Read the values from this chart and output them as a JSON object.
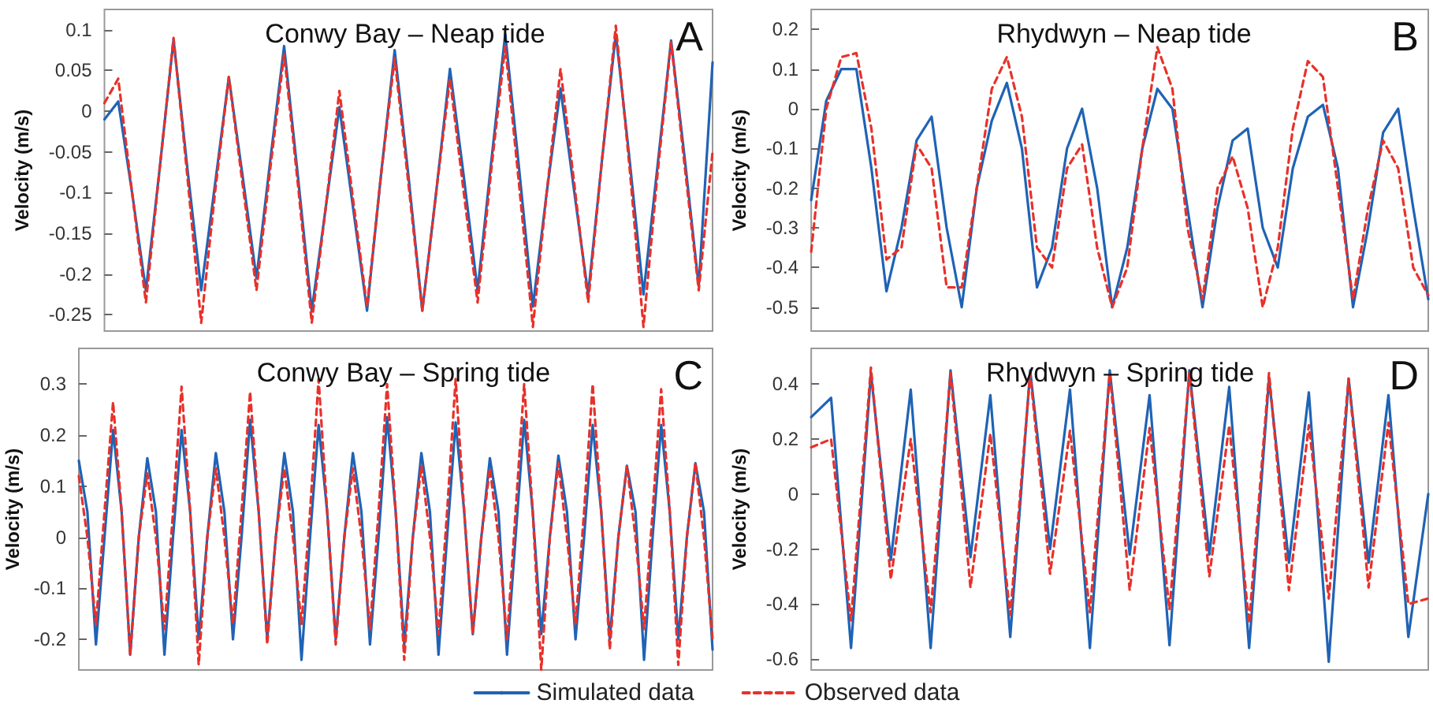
{
  "chart_data": [
    {
      "type": "line",
      "title": "Conwy Bay – Neap tide",
      "ylabel": "Velocity (m/s)",
      "annotations": [
        "A"
      ],
      "tick_labels": "y",
      "grid": false,
      "marker": "none",
      "categories": [
        null,
        null,
        null,
        null,
        null,
        null,
        null,
        null,
        null,
        null,
        null,
        null,
        null,
        null,
        null,
        null,
        null,
        null,
        null,
        null,
        null,
        null,
        null,
        null,
        null,
        null,
        null,
        null,
        null,
        null,
        null,
        null,
        null,
        null,
        null,
        null,
        null,
        null,
        null,
        null,
        null,
        null,
        null,
        null,
        null
      ],
      "ylim": [
        -0.27,
        0.125
      ],
      "yticks": [
        -0.25,
        -0.2,
        -0.15,
        -0.1,
        -0.05,
        0,
        0.05,
        0.1
      ],
      "series": [
        {
          "color": "#1f63b5",
          "line_style": "solid",
          "values": [
            -0.01,
            0.012,
            -0.1,
            -0.22,
            -0.07,
            0.088,
            -0.07,
            -0.22,
            -0.09,
            0.042,
            -0.08,
            -0.205,
            -0.06,
            0.08,
            -0.08,
            -0.245,
            -0.12,
            0.005,
            -0.12,
            -0.245,
            -0.08,
            0.075,
            -0.08,
            -0.245,
            -0.1,
            0.052,
            -0.08,
            -0.22,
            -0.06,
            0.095,
            -0.07,
            -0.24,
            -0.1,
            0.028,
            -0.1,
            -0.225,
            -0.06,
            0.095,
            -0.06,
            -0.225,
            -0.07,
            0.087,
            -0.06,
            -0.215,
            0.06
          ]
        },
        {
          "color": "#e8312a",
          "line_style": "dashed",
          "values": [
            0.01,
            0.04,
            -0.1,
            -0.235,
            -0.07,
            0.09,
            -0.08,
            -0.26,
            -0.1,
            0.042,
            -0.09,
            -0.22,
            -0.07,
            0.07,
            -0.09,
            -0.26,
            -0.12,
            0.025,
            -0.11,
            -0.24,
            -0.08,
            0.065,
            -0.09,
            -0.245,
            -0.1,
            0.04,
            -0.1,
            -0.235,
            -0.07,
            0.08,
            -0.09,
            -0.265,
            -0.1,
            0.052,
            -0.09,
            -0.235,
            -0.06,
            0.105,
            -0.07,
            -0.265,
            -0.08,
            0.085,
            -0.07,
            -0.22,
            -0.05
          ]
        }
      ]
    },
    {
      "type": "line",
      "title": "Rhydwyn – Neap tide",
      "ylabel": "Velocity (m/s)",
      "annotations": [
        "B"
      ],
      "tick_labels": "y",
      "grid": false,
      "marker": "none",
      "categories": [
        null,
        null,
        null,
        null,
        null,
        null,
        null,
        null,
        null,
        null,
        null,
        null,
        null,
        null,
        null,
        null,
        null,
        null,
        null,
        null,
        null,
        null,
        null,
        null,
        null,
        null,
        null,
        null,
        null,
        null,
        null,
        null,
        null,
        null,
        null,
        null,
        null,
        null,
        null,
        null,
        null,
        null
      ],
      "ylim": [
        -0.56,
        0.25
      ],
      "yticks": [
        -0.5,
        -0.4,
        -0.3,
        -0.2,
        -0.1,
        0,
        0.1,
        0.2
      ],
      "series": [
        {
          "color": "#1f63b5",
          "line_style": "solid",
          "values": [
            -0.23,
            0.02,
            0.1,
            0.1,
            -0.15,
            -0.46,
            -0.3,
            -0.08,
            -0.02,
            -0.3,
            -0.5,
            -0.2,
            -0.03,
            0.065,
            -0.1,
            -0.45,
            -0.35,
            -0.1,
            0.0,
            -0.2,
            -0.5,
            -0.35,
            -0.1,
            0.05,
            0.0,
            -0.25,
            -0.5,
            -0.25,
            -0.08,
            -0.05,
            -0.3,
            -0.4,
            -0.15,
            -0.02,
            0.01,
            -0.15,
            -0.5,
            -0.3,
            -0.06,
            0.0,
            -0.25,
            -0.48
          ]
        },
        {
          "color": "#e8312a",
          "line_style": "dashed",
          "values": [
            -0.36,
            0.0,
            0.13,
            0.14,
            -0.05,
            -0.38,
            -0.35,
            -0.09,
            -0.15,
            -0.45,
            -0.45,
            -0.2,
            0.05,
            0.13,
            -0.02,
            -0.35,
            -0.4,
            -0.15,
            -0.09,
            -0.35,
            -0.5,
            -0.4,
            -0.1,
            0.155,
            0.05,
            -0.3,
            -0.48,
            -0.2,
            -0.12,
            -0.25,
            -0.5,
            -0.35,
            -0.05,
            0.12,
            0.08,
            -0.2,
            -0.48,
            -0.25,
            -0.08,
            -0.15,
            -0.4,
            -0.47
          ]
        }
      ]
    },
    {
      "type": "line",
      "title": "Conwy Bay – Spring tide",
      "ylabel": "Velocity (m/s)",
      "annotations": [
        "C"
      ],
      "tick_labels": "y",
      "grid": false,
      "marker": "none",
      "legend": "bottom",
      "categories": [
        null,
        null,
        null,
        null,
        null,
        null,
        null,
        null,
        null,
        null,
        null,
        null,
        null,
        null,
        null,
        null,
        null,
        null,
        null,
        null,
        null,
        null,
        null,
        null,
        null,
        null,
        null,
        null,
        null,
        null,
        null,
        null,
        null,
        null,
        null,
        null,
        null,
        null,
        null,
        null,
        null,
        null,
        null,
        null,
        null,
        null,
        null,
        null,
        null,
        null,
        null,
        null,
        null,
        null,
        null,
        null,
        null,
        null,
        null,
        null,
        null,
        null,
        null,
        null,
        null,
        null,
        null,
        null,
        null,
        null,
        null,
        null,
        null,
        null,
        null
      ],
      "ylim": [
        -0.26,
        0.37
      ],
      "yticks": [
        -0.2,
        -0.1,
        0,
        0.1,
        0.2,
        0.3
      ],
      "series": [
        {
          "name": "Simulated data",
          "color": "#1f63b5",
          "line_style": "solid",
          "values": [
            0.15,
            0.05,
            -0.21,
            0.0,
            0.21,
            0.05,
            -0.23,
            0.0,
            0.155,
            0.05,
            -0.23,
            0.0,
            0.21,
            0.05,
            -0.2,
            0.0,
            0.165,
            0.05,
            -0.2,
            0.0,
            0.23,
            0.05,
            -0.2,
            0.0,
            0.165,
            0.05,
            -0.24,
            0.0,
            0.22,
            0.05,
            -0.2,
            0.0,
            0.165,
            0.05,
            -0.21,
            0.0,
            0.235,
            0.05,
            -0.21,
            0.0,
            0.165,
            0.05,
            -0.23,
            0.0,
            0.225,
            0.05,
            -0.19,
            0.0,
            0.155,
            0.05,
            -0.23,
            0.0,
            0.23,
            0.05,
            -0.19,
            0.0,
            0.16,
            0.05,
            -0.2,
            0.0,
            0.22,
            0.05,
            -0.2,
            0.0,
            0.14,
            0.05,
            -0.24,
            0.0,
            0.22,
            0.05,
            -0.2,
            0.0,
            0.145,
            0.05,
            -0.22
          ]
        },
        {
          "name": "Observed data",
          "color": "#e8312a",
          "line_style": "dashed",
          "values": [
            0.12,
            0.0,
            -0.17,
            0.05,
            0.265,
            0.05,
            -0.23,
            0.0,
            0.125,
            0.0,
            -0.18,
            0.05,
            0.295,
            0.05,
            -0.25,
            0.0,
            0.135,
            0.0,
            -0.17,
            0.05,
            0.285,
            0.05,
            -0.21,
            0.0,
            0.135,
            0.0,
            -0.17,
            0.05,
            0.31,
            0.05,
            -0.21,
            0.0,
            0.135,
            0.0,
            -0.18,
            0.05,
            0.3,
            0.05,
            -0.24,
            0.0,
            0.14,
            0.0,
            -0.19,
            0.05,
            0.31,
            0.05,
            -0.19,
            0.0,
            0.135,
            0.0,
            -0.2,
            0.05,
            0.3,
            0.05,
            -0.26,
            0.0,
            0.145,
            0.0,
            -0.17,
            0.05,
            0.3,
            0.05,
            -0.22,
            0.0,
            0.14,
            0.0,
            -0.18,
            0.05,
            0.29,
            0.05,
            -0.25,
            0.0,
            0.145,
            0.0,
            -0.2
          ]
        }
      ]
    },
    {
      "type": "line",
      "title": "Rhydwyn – Spring tide",
      "ylabel": "Velocity (m/s)",
      "annotations": [
        "D"
      ],
      "tick_labels": "y",
      "grid": false,
      "marker": "none",
      "categories": [
        null,
        null,
        null,
        null,
        null,
        null,
        null,
        null,
        null,
        null,
        null,
        null,
        null,
        null,
        null,
        null,
        null,
        null,
        null,
        null,
        null,
        null,
        null,
        null,
        null,
        null,
        null,
        null,
        null,
        null,
        null,
        null
      ],
      "ylim": [
        -0.64,
        0.53
      ],
      "yticks": [
        -0.6,
        -0.4,
        -0.2,
        0,
        0.2,
        0.4
      ],
      "series": [
        {
          "color": "#1f63b5",
          "line_style": "solid",
          "values": [
            0.28,
            0.35,
            -0.56,
            0.44,
            -0.24,
            0.38,
            -0.56,
            0.45,
            -0.23,
            0.36,
            -0.52,
            0.45,
            -0.2,
            0.38,
            -0.56,
            0.45,
            -0.22,
            0.36,
            -0.55,
            0.45,
            -0.22,
            0.39,
            -0.56,
            0.42,
            -0.25,
            0.37,
            -0.61,
            0.42,
            -0.25,
            0.36,
            -0.52,
            0.0
          ]
        },
        {
          "color": "#e8312a",
          "line_style": "dashed",
          "values": [
            0.17,
            0.2,
            -0.46,
            0.46,
            -0.31,
            0.2,
            -0.43,
            0.44,
            -0.34,
            0.22,
            -0.44,
            0.44,
            -0.29,
            0.23,
            -0.43,
            0.44,
            -0.35,
            0.24,
            -0.42,
            0.44,
            -0.3,
            0.25,
            -0.47,
            0.44,
            -0.35,
            0.25,
            -0.38,
            0.42,
            -0.34,
            0.26,
            -0.4,
            -0.38
          ]
        }
      ]
    }
  ]
}
